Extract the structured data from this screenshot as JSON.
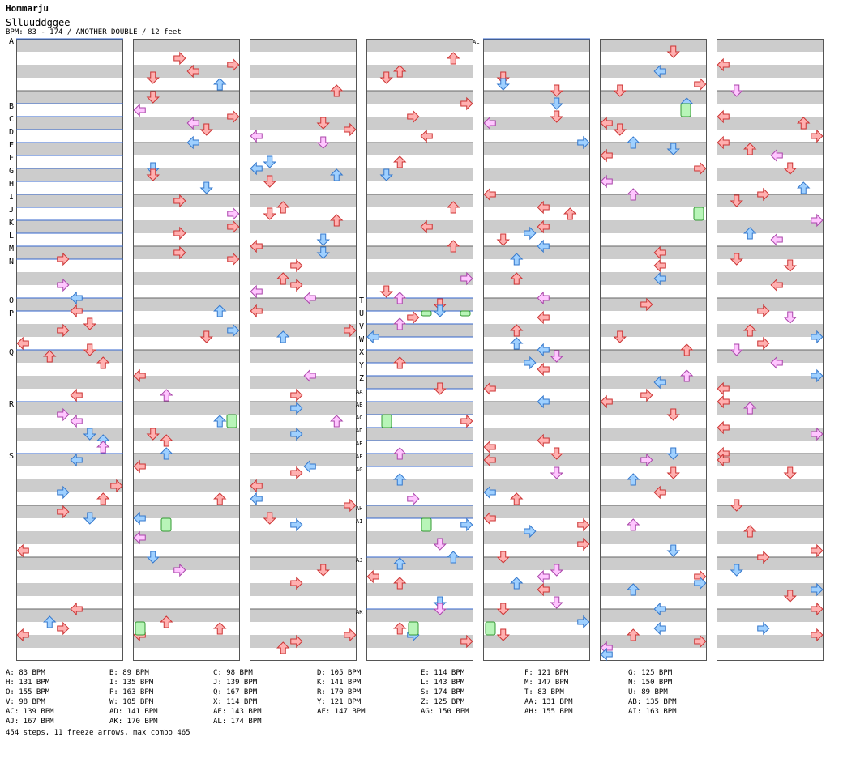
{
  "header": {
    "title": "Hommarju",
    "subtitle": "Slluuddggee",
    "meta": "BPM: 83 - 174 / ANOTHER DOUBLE / 12 feet"
  },
  "colors": {
    "band": "#cccccc",
    "column_border": "#555555",
    "bpm_line": "#3366cc",
    "red_fill": "#ffb0b0",
    "red_stroke": "#cc3333",
    "blue_fill": "#9fd0ff",
    "blue_stroke": "#3377cc",
    "pink_fill": "#ffc6ff",
    "pink_stroke": "#aa44aa",
    "freeze_fill": "#b8f5b8",
    "freeze_stroke": "#339933"
  },
  "chart": {
    "columns": 7,
    "measures_per_column": 4,
    "markers": [
      {
        "label": "A",
        "col": 0,
        "beat": 0
      },
      {
        "label": "B",
        "col": 0,
        "beat": 5
      },
      {
        "label": "C",
        "col": 0,
        "beat": 6
      },
      {
        "label": "D",
        "col": 0,
        "beat": 7
      },
      {
        "label": "E",
        "col": 0,
        "beat": 8
      },
      {
        "label": "F",
        "col": 0,
        "beat": 9
      },
      {
        "label": "G",
        "col": 0,
        "beat": 10
      },
      {
        "label": "H",
        "col": 0,
        "beat": 11
      },
      {
        "label": "I",
        "col": 0,
        "beat": 12
      },
      {
        "label": "J",
        "col": 0,
        "beat": 13
      },
      {
        "label": "K",
        "col": 0,
        "beat": 14
      },
      {
        "label": "L",
        "col": 0,
        "beat": 15
      },
      {
        "label": "M",
        "col": 0,
        "beat": 16
      },
      {
        "label": "N",
        "col": 0,
        "beat": 17
      },
      {
        "label": "O",
        "col": 0,
        "beat": 20
      },
      {
        "label": "P",
        "col": 0,
        "beat": 21
      },
      {
        "label": "Q",
        "col": 0,
        "beat": 24
      },
      {
        "label": "R",
        "col": 0,
        "beat": 28
      },
      {
        "label": "S",
        "col": 0,
        "beat": 32
      },
      {
        "label": "T",
        "col": 3,
        "beat": 20
      },
      {
        "label": "U",
        "col": 3,
        "beat": 21
      },
      {
        "label": "V",
        "col": 3,
        "beat": 22
      },
      {
        "label": "W",
        "col": 3,
        "beat": 23
      },
      {
        "label": "X",
        "col": 3,
        "beat": 24
      },
      {
        "label": "Y",
        "col": 3,
        "beat": 25
      },
      {
        "label": "Z",
        "col": 3,
        "beat": 26
      },
      {
        "label": "AA",
        "col": 3,
        "beat": 27
      },
      {
        "label": "AB",
        "col": 3,
        "beat": 28
      },
      {
        "label": "AC",
        "col": 3,
        "beat": 29
      },
      {
        "label": "AD",
        "col": 3,
        "beat": 30
      },
      {
        "label": "AE",
        "col": 3,
        "beat": 31
      },
      {
        "label": "AF",
        "col": 3,
        "beat": 32
      },
      {
        "label": "AG",
        "col": 3,
        "beat": 33
      },
      {
        "label": "AH",
        "col": 3,
        "beat": 36
      },
      {
        "label": "AI",
        "col": 3,
        "beat": 37
      },
      {
        "label": "AJ",
        "col": 3,
        "beat": 40
      },
      {
        "label": "AK",
        "col": 3,
        "beat": 44
      },
      {
        "label": "AL",
        "col": 4,
        "beat": 0
      }
    ]
  },
  "bpm_changes": [
    "A: 83 BPM",
    "B: 89 BPM",
    "C: 98 BPM",
    "D: 105 BPM",
    "E: 114 BPM",
    "F: 121 BPM",
    "G: 125 BPM",
    "H: 131 BPM",
    "I: 135 BPM",
    "J: 139 BPM",
    "K: 141 BPM",
    "L: 143 BPM",
    "M: 147 BPM",
    "N: 150 BPM",
    "O: 155 BPM",
    "P: 163 BPM",
    "Q: 167 BPM",
    "R: 170 BPM",
    "S: 174 BPM",
    "T: 83 BPM",
    "U: 89 BPM",
    "V: 98 BPM",
    "W: 105 BPM",
    "X: 114 BPM",
    "Y: 121 BPM",
    "Z: 125 BPM",
    "AA: 131 BPM",
    "AB: 135 BPM",
    "AC: 139 BPM",
    "AD: 141 BPM",
    "AE: 143 BPM",
    "AF: 147 BPM",
    "AG: 150 BPM",
    "AH: 155 BPM",
    "AI: 163 BPM",
    "AJ: 167 BPM",
    "AK: 170 BPM",
    "AL: 174 BPM"
  ],
  "summary": "454 steps, 11 freeze arrows, max combo 465"
}
